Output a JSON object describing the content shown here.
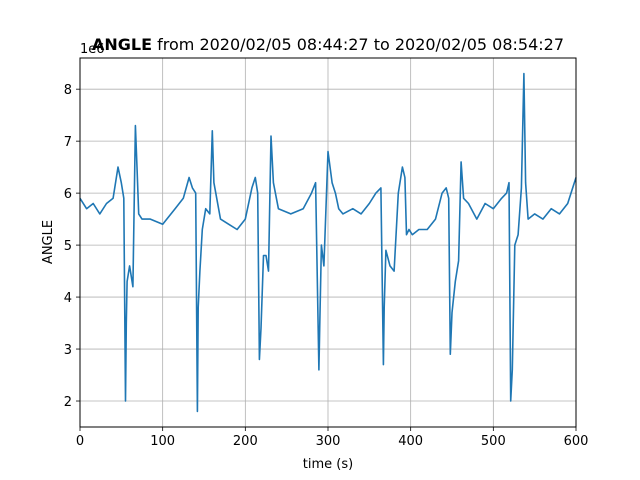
{
  "chart_data": {
    "type": "line",
    "title": {
      "bold_part": "ANGLE",
      "rest": " from 2020/02/05 08:44:27 to 2020/02/05 08:54:27"
    },
    "xlabel": "time (s)",
    "ylabel": "ANGLE",
    "offset_text": "1e6",
    "xlim": [
      0,
      600
    ],
    "ylim": [
      1.5,
      8.6
    ],
    "x_ticks": [
      0,
      100,
      200,
      300,
      400,
      500,
      600
    ],
    "x_tick_labels": [
      "0",
      "100",
      "200",
      "300",
      "400",
      "500",
      "600"
    ],
    "y_ticks": [
      2,
      3,
      4,
      5,
      6,
      7,
      8
    ],
    "y_tick_labels": [
      "2",
      "3",
      "4",
      "5",
      "6",
      "7",
      "8"
    ],
    "grid": true,
    "line_color": "#1f77b4",
    "series": [
      {
        "x": [
          0,
          8,
          16,
          24,
          32,
          40,
          46,
          50,
          53,
          55,
          56,
          57,
          60,
          64,
          67,
          69,
          71,
          75,
          85,
          100,
          115,
          125,
          132,
          136,
          140,
          142,
          143,
          145,
          148,
          152,
          157,
          160,
          162,
          170,
          180,
          190,
          200,
          208,
          212,
          215,
          217,
          219,
          222,
          225,
          228,
          231,
          234,
          240,
          255,
          270,
          280,
          285,
          289,
          290,
          292,
          295,
          300,
          305,
          309,
          313,
          318,
          330,
          340,
          350,
          358,
          364,
          367,
          368,
          370,
          375,
          380,
          385,
          390,
          393,
          395,
          398,
          402,
          410,
          420,
          430,
          438,
          443,
          446,
          448,
          450,
          454,
          458,
          461,
          464,
          470,
          480,
          490,
          500,
          510,
          516,
          519,
          521,
          523,
          526,
          530,
          534,
          537,
          539,
          542,
          550,
          560,
          570,
          580,
          590,
          600
        ],
        "y": [
          5.9,
          5.7,
          5.8,
          5.6,
          5.8,
          5.9,
          6.5,
          6.2,
          5.9,
          2.0,
          3.5,
          4.3,
          4.6,
          4.2,
          7.3,
          6.5,
          5.6,
          5.5,
          5.5,
          5.4,
          5.7,
          5.9,
          6.3,
          6.1,
          6.0,
          1.8,
          3.8,
          4.5,
          5.3,
          5.7,
          5.6,
          7.2,
          6.2,
          5.5,
          5.4,
          5.3,
          5.5,
          6.1,
          6.3,
          6.0,
          2.8,
          3.4,
          4.8,
          4.8,
          4.5,
          7.1,
          6.2,
          5.7,
          5.6,
          5.7,
          6.0,
          6.2,
          2.6,
          3.4,
          5.0,
          4.6,
          6.8,
          6.2,
          6.0,
          5.7,
          5.6,
          5.7,
          5.6,
          5.8,
          6.0,
          6.1,
          2.7,
          3.8,
          4.9,
          4.6,
          4.5,
          6.0,
          6.5,
          6.3,
          5.2,
          5.3,
          5.2,
          5.3,
          5.3,
          5.5,
          6.0,
          6.1,
          5.9,
          2.9,
          3.7,
          4.3,
          4.7,
          6.6,
          5.9,
          5.8,
          5.5,
          5.8,
          5.7,
          5.9,
          6.0,
          6.2,
          2.0,
          2.6,
          5.0,
          5.2,
          6.1,
          8.3,
          6.2,
          5.5,
          5.6,
          5.5,
          5.7,
          5.6,
          5.8,
          6.3
        ]
      }
    ]
  }
}
